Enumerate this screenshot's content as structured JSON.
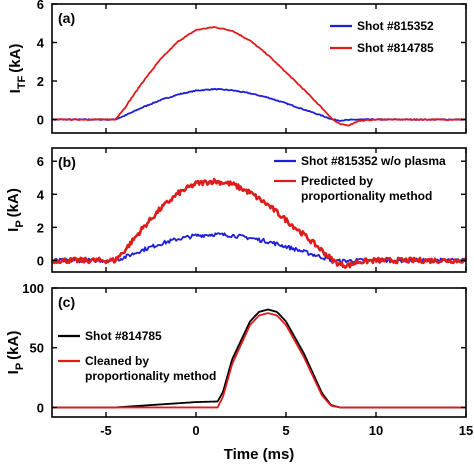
{
  "chart_data": [
    {
      "type": "line",
      "panel_label": "(a)",
      "ylabel": "I",
      "ylabel_sub": "TF",
      "ylabel_unit": "(kA)",
      "xlim": [
        -8,
        15
      ],
      "ylim": [
        -0.7,
        6
      ],
      "yticks": [
        0,
        2,
        4,
        6
      ],
      "grid": false,
      "legend_position": "top-right",
      "series": [
        {
          "name": "Shot #815352",
          "color": "#1f1fd6",
          "x": [
            -8,
            -4.5,
            -4,
            -3,
            -2,
            -1,
            0,
            1,
            2,
            3,
            4,
            5,
            6,
            7,
            7.6,
            8,
            9,
            10,
            15
          ],
          "y": [
            0,
            0,
            0.18,
            0.62,
            1.0,
            1.3,
            1.5,
            1.58,
            1.52,
            1.36,
            1.14,
            0.84,
            0.52,
            0.2,
            0,
            -0.05,
            0,
            0,
            0
          ]
        },
        {
          "name": "Shot #814785",
          "color": "#e01b1b",
          "x": [
            -8,
            -4.5,
            -4,
            -3,
            -2,
            -1,
            0,
            1,
            2,
            3,
            4,
            5,
            6,
            7,
            7.6,
            8,
            8.5,
            9,
            10,
            15
          ],
          "y": [
            0,
            0,
            0.55,
            1.9,
            3.1,
            4.05,
            4.65,
            4.8,
            4.62,
            4.1,
            3.35,
            2.45,
            1.55,
            0.6,
            0,
            -0.25,
            -0.3,
            -0.08,
            0,
            0
          ]
        }
      ]
    },
    {
      "type": "line",
      "panel_label": "(b)",
      "ylabel": "I",
      "ylabel_sub": "P",
      "ylabel_unit": "(kA)",
      "xlim": [
        -8,
        15
      ],
      "ylim": [
        -0.7,
        6.8
      ],
      "yticks": [
        0,
        2,
        4,
        6
      ],
      "grid": false,
      "legend_position": "top-right",
      "series": [
        {
          "name": "Shot #815352 w/o plasma",
          "color": "#1f1fd6",
          "x": [
            -8,
            -4.5,
            -4,
            -3,
            -2,
            -1,
            0,
            1,
            2,
            3,
            4,
            5,
            6,
            7,
            7.6,
            8,
            9,
            10,
            15
          ],
          "y": [
            0,
            0,
            0.18,
            0.62,
            1.0,
            1.3,
            1.5,
            1.58,
            1.52,
            1.36,
            1.14,
            0.84,
            0.52,
            0.2,
            0,
            -0.05,
            0,
            0,
            0
          ]
        },
        {
          "name": "Predicted by proportionality method",
          "legend_lines": [
            "Predicted by",
            "proportionality method"
          ],
          "color": "#e01b1b",
          "x": [
            -8,
            -4.5,
            -4,
            -3,
            -2,
            -1,
            0,
            1,
            2,
            3,
            4,
            5,
            6,
            7,
            7.6,
            8,
            8.5,
            9,
            10,
            15
          ],
          "y": [
            0,
            0,
            0.55,
            1.9,
            3.1,
            4.05,
            4.65,
            4.8,
            4.62,
            4.1,
            3.35,
            2.45,
            1.55,
            0.6,
            0,
            -0.25,
            -0.3,
            -0.08,
            0,
            0
          ]
        }
      ]
    },
    {
      "type": "line",
      "panel_label": "(c)",
      "ylabel": "I",
      "ylabel_sub": "P",
      "ylabel_unit": "(kA)",
      "xlabel": "Time (ms)",
      "xlim": [
        -8,
        15
      ],
      "ylim": [
        -8,
        100
      ],
      "yticks": [
        0,
        50,
        100
      ],
      "xticks": [
        -5,
        0,
        5,
        10,
        15
      ],
      "grid": false,
      "legend_position": "left",
      "series": [
        {
          "name": "Shot #814785",
          "color": "#000000",
          "x": [
            -8,
            -4.5,
            -3,
            -2,
            -1,
            0,
            1.2,
            1.5,
            2,
            3,
            3.5,
            4,
            4.5,
            5,
            6,
            7,
            7.5,
            8,
            15
          ],
          "y": [
            0,
            0,
            1.5,
            2.5,
            3.5,
            4.5,
            5,
            13,
            40,
            72,
            80,
            82,
            80,
            72,
            45,
            12,
            2,
            0,
            0
          ]
        },
        {
          "name": "Cleaned by proportionality method",
          "legend_lines": [
            "Cleaned by",
            "proportionality method"
          ],
          "color": "#e01b1b",
          "x": [
            -8,
            1.2,
            1.5,
            2,
            3,
            3.5,
            4,
            4.5,
            5,
            6,
            7,
            7.5,
            8,
            15
          ],
          "y": [
            0,
            0,
            9,
            36,
            69,
            77,
            79,
            77,
            69,
            42,
            10,
            1.5,
            0,
            0
          ]
        }
      ]
    }
  ]
}
